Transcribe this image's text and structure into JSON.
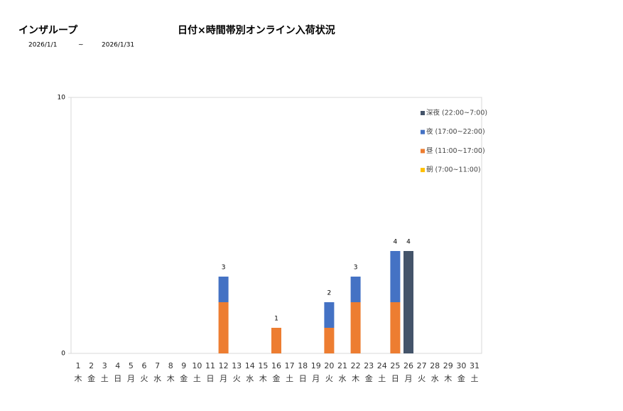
{
  "header": {
    "title": "インザループ",
    "date_from": "2026/1/1",
    "tilde": "~",
    "date_to": "2026/1/31"
  },
  "chart_data": {
    "type": "stacked_bar",
    "title": "日付×時間帯別オンライン入荷状況",
    "categories": [
      "1",
      "2",
      "3",
      "4",
      "5",
      "6",
      "7",
      "8",
      "9",
      "10",
      "11",
      "12",
      "13",
      "14",
      "15",
      "16",
      "17",
      "18",
      "19",
      "20",
      "21",
      "22",
      "23",
      "24",
      "25",
      "26",
      "27",
      "28",
      "29",
      "30",
      "31"
    ],
    "weekdays": [
      "木",
      "金",
      "土",
      "日",
      "月",
      "火",
      "水",
      "木",
      "金",
      "土",
      "日",
      "月",
      "火",
      "水",
      "木",
      "金",
      "土",
      "日",
      "月",
      "火",
      "水",
      "木",
      "金",
      "土",
      "日",
      "月",
      "火",
      "水",
      "木",
      "金",
      "土"
    ],
    "series": [
      {
        "name": "朝 (7:00~11:00)",
        "color": "#ffc000",
        "values": [
          0,
          0,
          0,
          0,
          0,
          0,
          0,
          0,
          0,
          0,
          0,
          0,
          0,
          0,
          0,
          0,
          0,
          0,
          0,
          0,
          0,
          0,
          0,
          0,
          0,
          0,
          0,
          0,
          0,
          0,
          0
        ]
      },
      {
        "name": "昼 (11:00~17:00)",
        "color": "#ed7d31",
        "values": [
          0,
          0,
          0,
          0,
          0,
          0,
          0,
          0,
          0,
          0,
          0,
          2,
          0,
          0,
          0,
          1,
          0,
          0,
          0,
          1,
          0,
          2,
          0,
          0,
          2,
          0,
          0,
          0,
          0,
          0,
          0
        ]
      },
      {
        "name": "夜 (17:00~22:00)",
        "color": "#4472c4",
        "values": [
          0,
          0,
          0,
          0,
          0,
          0,
          0,
          0,
          0,
          0,
          0,
          1,
          0,
          0,
          0,
          0,
          0,
          0,
          0,
          1,
          0,
          1,
          0,
          0,
          2,
          0,
          0,
          0,
          0,
          0,
          0
        ]
      },
      {
        "name": "深夜 (22:00~7:00)",
        "color": "#44546a",
        "values": [
          0,
          0,
          0,
          0,
          0,
          0,
          0,
          0,
          0,
          0,
          0,
          0,
          0,
          0,
          0,
          0,
          0,
          0,
          0,
          0,
          0,
          0,
          0,
          0,
          0,
          4,
          0,
          0,
          0,
          0,
          0
        ]
      }
    ],
    "totals": [
      null,
      null,
      null,
      null,
      null,
      null,
      null,
      null,
      null,
      null,
      null,
      3,
      null,
      null,
      null,
      1,
      null,
      null,
      null,
      2,
      null,
      3,
      null,
      null,
      4,
      4,
      null,
      null,
      null,
      null,
      null
    ],
    "ylim": [
      0,
      10
    ],
    "yticks": [
      0,
      10
    ],
    "grid": false
  }
}
